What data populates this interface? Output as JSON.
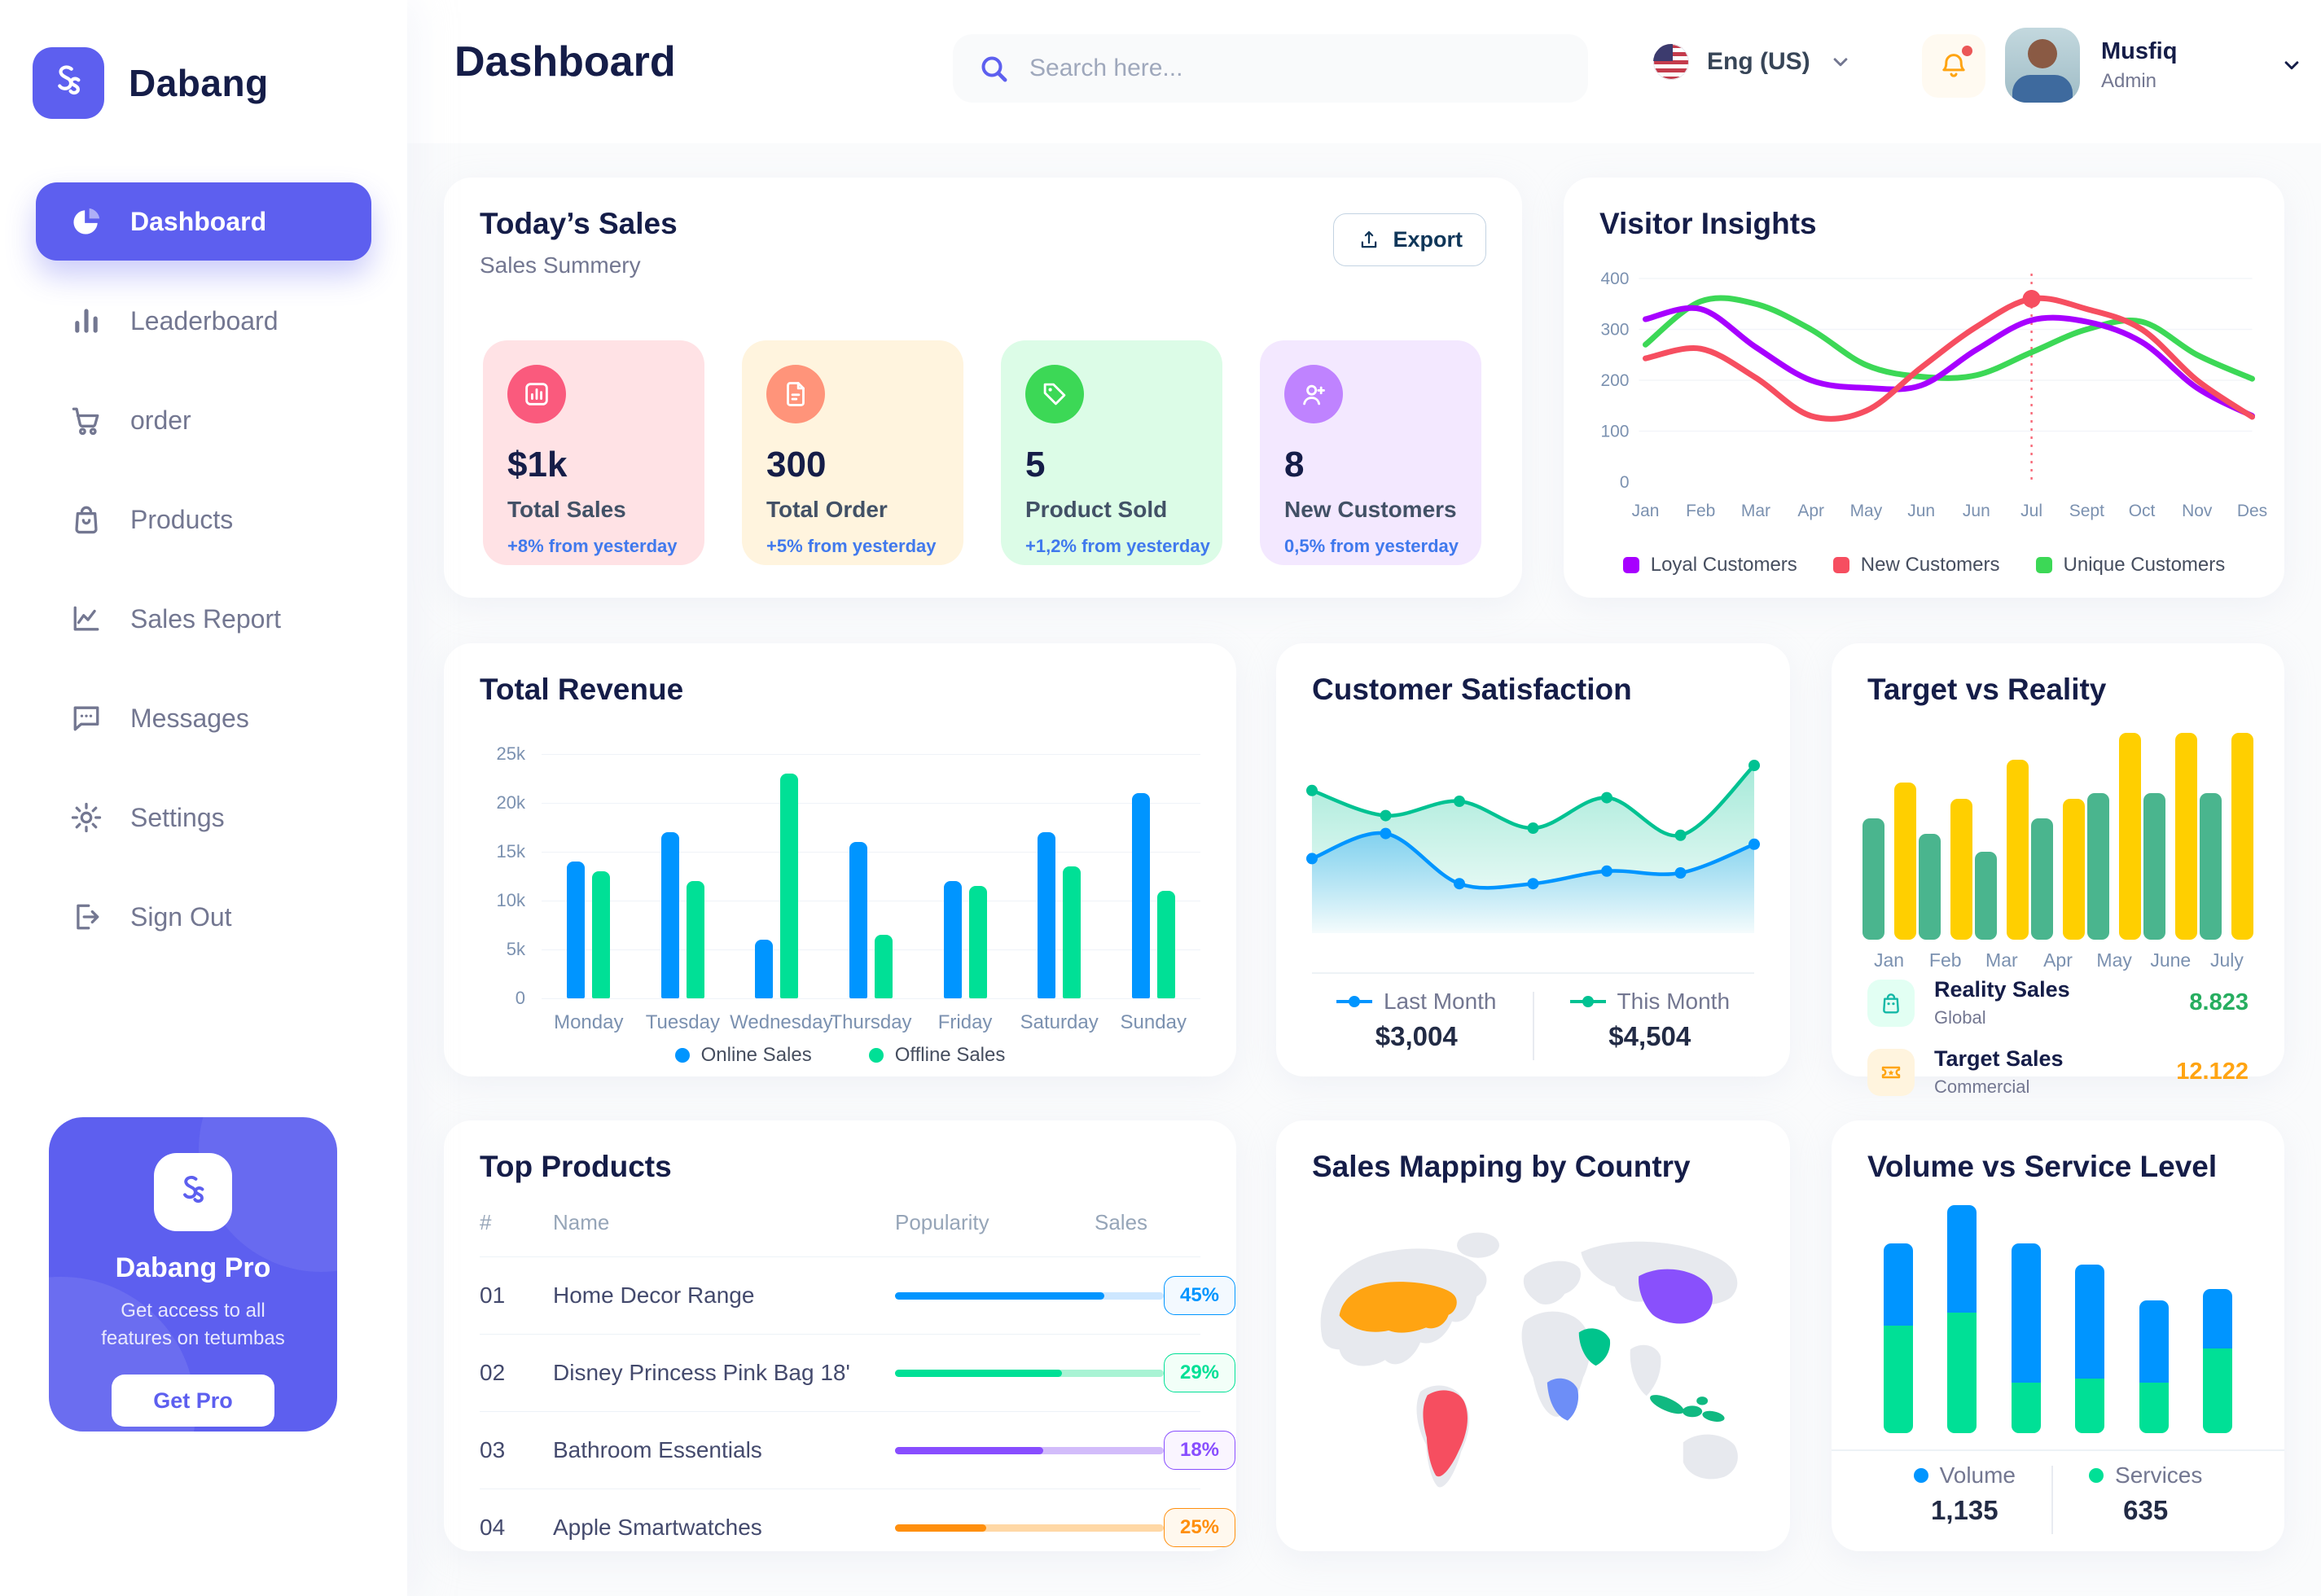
{
  "app": {
    "name": "Dabang",
    "accent_color": "#5D5FEF"
  },
  "header": {
    "page_title": "Dashboard",
    "search_placeholder": "Search here...",
    "language": "Eng (US)",
    "user_name": "Musfiq",
    "user_role": "Admin"
  },
  "sidebar": {
    "items": [
      {
        "label": "Dashboard",
        "icon": "pie-chart-icon",
        "active": true
      },
      {
        "label": "Leaderboard",
        "icon": "bar-chart-icon",
        "active": false
      },
      {
        "label": "order",
        "icon": "cart-icon",
        "active": false
      },
      {
        "label": "Products",
        "icon": "bag-icon",
        "active": false
      },
      {
        "label": "Sales Report",
        "icon": "line-chart-icon",
        "active": false
      },
      {
        "label": "Messages",
        "icon": "message-icon",
        "active": false
      },
      {
        "label": "Settings",
        "icon": "gear-icon",
        "active": false
      },
      {
        "label": "Sign Out",
        "icon": "sign-out-icon",
        "active": false
      }
    ],
    "pro_card": {
      "title": "Dabang Pro",
      "subtitle": "Get access to all features on tetumbas",
      "button_label": "Get Pro"
    }
  },
  "today_sales": {
    "title": "Today’s Sales",
    "subtitle": "Sales Summery",
    "export_label": "Export",
    "delta_color": "#4079ED",
    "stats": [
      {
        "value": "$1k",
        "label": "Total Sales",
        "delta": "+8% from yesterday",
        "bg": "#FFE2E5",
        "icon_bg": "#FA5A7D",
        "icon": "stat-bar-chart-icon"
      },
      {
        "value": "300",
        "label": "Total Order",
        "delta": "+5% from yesterday",
        "bg": "#FFF4DE",
        "icon_bg": "#FF947A",
        "icon": "stat-file-icon"
      },
      {
        "value": "5",
        "label": "Product Sold",
        "delta": "+1,2% from yesterday",
        "bg": "#DCFCE7",
        "icon_bg": "#3CD856",
        "icon": "stat-tag-icon"
      },
      {
        "value": "8",
        "label": "New Customers",
        "delta": "0,5% from yesterday",
        "bg": "#F3E8FF",
        "icon_bg": "#BF83FF",
        "icon": "stat-user-plus-icon"
      }
    ]
  },
  "visitor_insights": {
    "title": "Visitor Insights",
    "chart_data": {
      "type": "line",
      "x": [
        "Jan",
        "Feb",
        "Mar",
        "Apr",
        "May",
        "Jun",
        "Jun",
        "Jul",
        "Sept",
        "Oct",
        "Nov",
        "Des"
      ],
      "ylim": [
        0,
        400
      ],
      "yticks": [
        0,
        100,
        200,
        300,
        400
      ],
      "grid": true,
      "legend_position": "bottom",
      "series": [
        {
          "name": "Loyal Customers",
          "color": "#A700FF",
          "values": [
            320,
            340,
            265,
            200,
            185,
            190,
            260,
            318,
            315,
            275,
            185,
            130
          ]
        },
        {
          "name": "New Customers",
          "color": "#F64E60",
          "values": [
            243,
            262,
            205,
            130,
            140,
            225,
            305,
            360,
            340,
            300,
            200,
            128
          ]
        },
        {
          "name": "Unique Customers",
          "color": "#3CD856",
          "values": [
            270,
            355,
            350,
            300,
            230,
            207,
            210,
            255,
            300,
            315,
            250,
            203
          ]
        }
      ],
      "marker": {
        "series": "New Customers",
        "x_index": 7,
        "x_label": "Jul",
        "value": 360
      }
    }
  },
  "total_revenue": {
    "title": "Total Revenue",
    "chart_data": {
      "type": "bar",
      "categories": [
        "Monday",
        "Tuesday",
        "Wednesday",
        "Thursday",
        "Friday",
        "Saturday",
        "Sunday"
      ],
      "ylim": [
        0,
        25
      ],
      "yticks_labels": [
        "25k",
        "20k",
        "15k",
        "10k",
        "5k",
        "0"
      ],
      "unit": "k",
      "grid": true,
      "legend_position": "bottom",
      "series": [
        {
          "name": "Online Sales",
          "color": "#0095FF",
          "values": [
            14,
            17,
            6,
            16,
            12,
            17,
            21
          ]
        },
        {
          "name": "Offline Sales",
          "color": "#00E096",
          "values": [
            13,
            12,
            23,
            6.5,
            11.5,
            13.5,
            11
          ]
        }
      ]
    }
  },
  "customer_satisfaction": {
    "title": "Customer Satisfaction",
    "chart_data": {
      "type": "area",
      "x": [
        1,
        2,
        3,
        4,
        5,
        6,
        7
      ],
      "ylim": [
        0,
        100
      ],
      "series": [
        {
          "name": "Last Month",
          "color": "#0095FF",
          "values": [
            38,
            52,
            24,
            24,
            31,
            30,
            46
          ]
        },
        {
          "name": "This Month",
          "color": "#00C292",
          "values": [
            76,
            62,
            70,
            55,
            72,
            51,
            90
          ]
        }
      ]
    },
    "legend": [
      {
        "label": "Last Month",
        "value": "$3,004",
        "color": "#0095FF"
      },
      {
        "label": "This Month",
        "value": "$4,504",
        "color": "#00C292"
      }
    ]
  },
  "target_vs_reality": {
    "title": "Target vs Reality",
    "chart_data": {
      "type": "bar",
      "categories": [
        "Jan",
        "Feb",
        "Mar",
        "Apr",
        "May",
        "June",
        "July"
      ],
      "ylim": [
        0,
        14
      ],
      "series": [
        {
          "name": "Reality Sales",
          "color": "#4AB58E",
          "values": [
            8,
            7,
            5.8,
            8,
            9.7,
            9.7,
            9.7
          ]
        },
        {
          "name": "Target Sales",
          "color": "#FFCF00",
          "values": [
            10.4,
            9.3,
            11.9,
            9.3,
            13.7,
            13.7,
            13.7
          ]
        }
      ]
    },
    "legend": [
      {
        "label": "Reality Sales",
        "sublabel": "Global",
        "value": "8.823",
        "value_color": "#27AE60",
        "icon": "legend-bag-icon",
        "icon_color": "#14B8A6",
        "icon_bg": "#E2FFF3"
      },
      {
        "label": "Target Sales",
        "sublabel": "Commercial",
        "value": "12.122",
        "value_color": "#FFA412",
        "icon": "legend-ticket-icon",
        "icon_color": "#FFA412",
        "icon_bg": "#FFF4DE"
      }
    ]
  },
  "top_products": {
    "title": "Top Products",
    "columns": [
      "#",
      "Name",
      "Popularity",
      "Sales"
    ],
    "rows": [
      {
        "num": "01",
        "name": "Home Decor Range",
        "popularity_pct": 78,
        "sales": "45%",
        "color": "#0095FF",
        "track": "#CDE7FF",
        "badge_bg": "#F3F9FF"
      },
      {
        "num": "02",
        "name": "Disney Princess Pink Bag 18'",
        "popularity_pct": 62,
        "sales": "29%",
        "color": "#00E096",
        "track": "#A9F3D4",
        "badge_bg": "#F2FFF8"
      },
      {
        "num": "03",
        "name": "Bathroom Essentials",
        "popularity_pct": 55,
        "sales": "18%",
        "color": "#884DFF",
        "track": "#D2BCFA",
        "badge_bg": "#FAF5FF"
      },
      {
        "num": "04",
        "name": "Apple Smartwatches",
        "popularity_pct": 34,
        "sales": "25%",
        "color": "#FF8F0D",
        "track": "#FFD8A6",
        "badge_bg": "#FFF8EE"
      }
    ]
  },
  "sales_mapping": {
    "title": "Sales Mapping by Country",
    "countries": [
      {
        "name": "United States",
        "color": "#FFA412"
      },
      {
        "name": "Brazil",
        "color": "#F64E60"
      },
      {
        "name": "DR Congo",
        "color": "#6D8EF7"
      },
      {
        "name": "Saudi Arabia",
        "color": "#00C48C"
      },
      {
        "name": "China",
        "color": "#8950FC"
      },
      {
        "name": "Indonesia",
        "color": "#10B981"
      }
    ]
  },
  "volume_service": {
    "title": "Volume vs Service Level",
    "chart_data": {
      "type": "stacked-bar",
      "categories": [
        "1",
        "2",
        "3",
        "4",
        "5",
        "6"
      ],
      "ylim": [
        0,
        100
      ],
      "series": [
        {
          "name": "Volume",
          "color": "#0095FF",
          "values": [
            36,
            47,
            61,
            50,
            36,
            26
          ]
        },
        {
          "name": "Services",
          "color": "#00E096",
          "values": [
            47,
            53,
            22,
            24,
            22,
            37
          ]
        }
      ]
    },
    "legend": [
      {
        "label": "Volume",
        "value": "1,135",
        "color": "#0095FF"
      },
      {
        "label": "Services",
        "value": "635",
        "color": "#00E096"
      }
    ]
  }
}
